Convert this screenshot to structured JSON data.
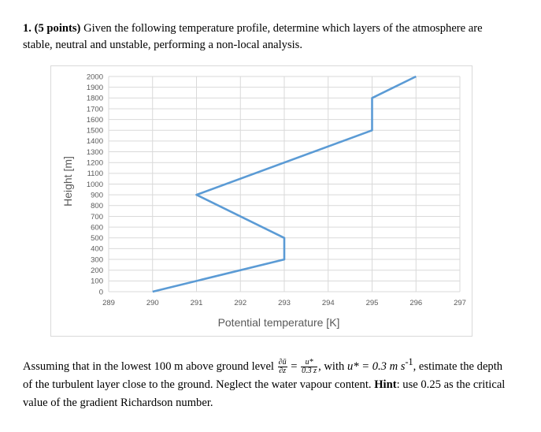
{
  "question": {
    "number": "1.",
    "points": "(5 points)",
    "text": "Given the following temperature profile, determine which layers of the atmosphere are stable, neutral and unstable, performing a non-local analysis."
  },
  "chart_data": {
    "type": "line",
    "xlabel": "Potential temperature [K]",
    "ylabel": "Height [m]",
    "xlim": [
      289,
      297
    ],
    "ylim": [
      0,
      2000
    ],
    "x_ticks": [
      "289",
      "290",
      "291",
      "292",
      "293",
      "294",
      "295",
      "296",
      "297"
    ],
    "y_ticks": [
      "0",
      "100",
      "200",
      "300",
      "400",
      "500",
      "600",
      "700",
      "800",
      "900",
      "1000",
      "1100",
      "1200",
      "1300",
      "1400",
      "1500",
      "1600",
      "1700",
      "1800",
      "1900",
      "2000"
    ],
    "grid": true,
    "color": "#5b9bd5",
    "series": [
      {
        "x": [
          290,
          293,
          293,
          291,
          295,
          295,
          296
        ],
        "y": [
          0,
          300,
          500,
          900,
          1500,
          1800,
          2000
        ]
      }
    ]
  },
  "body": {
    "p1": "Assuming that in the lowest 100 m above ground level",
    "eq_lhs_num": "∂ū",
    "eq_lhs_den": "∂z",
    "eq_equals": "=",
    "eq_rhs_num": "u*",
    "eq_rhs_den": "0.3 z",
    "p2": ", with",
    "ustar": "u* = 0.3 m s",
    "ustar_exp": "-1",
    "p3": ", estimate the depth of the turbulent layer close to the ground. Neglect the water vapour content.",
    "hint_label": "Hint",
    "hint_text": ": use 0.25 as the critical value of the gradient Richardson number."
  }
}
